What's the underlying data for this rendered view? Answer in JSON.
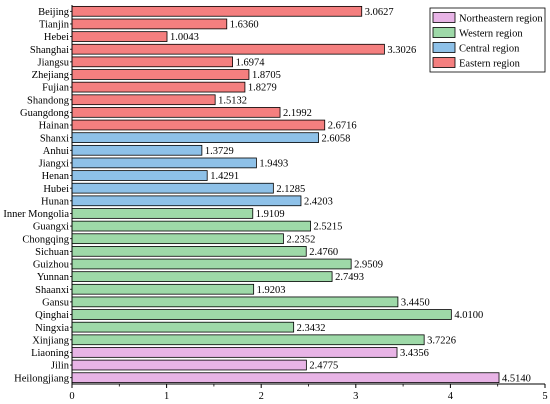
{
  "chart_data": {
    "type": "bar",
    "orientation": "horizontal",
    "categories": [
      "Beijing",
      "Tianjin",
      "Hebei",
      "Shanghai",
      "Jiangsu",
      "Zhejiang",
      "Fujian",
      "Shandong",
      "Guangdong",
      "Hainan",
      "Shanxi",
      "Anhui",
      "Jiangxi",
      "Henan",
      "Hubei",
      "Hunan",
      "Inner Mongolia",
      "Guangxi",
      "Chongqing",
      "Sichuan",
      "Guizhou",
      "Yunnan",
      "Shaanxi",
      "Gansu",
      "Qinghai",
      "Ningxia",
      "Xinjiang",
      "Liaoning",
      "Jilin",
      "Heilongjiang"
    ],
    "values": [
      3.0627,
      1.636,
      1.0043,
      3.3026,
      1.6974,
      1.8705,
      1.8279,
      1.5132,
      2.1992,
      2.6716,
      2.6058,
      1.3729,
      1.9493,
      1.4291,
      2.1285,
      2.4203,
      1.9109,
      2.5215,
      2.2352,
      2.476,
      2.9509,
      2.7493,
      1.9203,
      3.445,
      4.01,
      2.3432,
      3.7226,
      3.4356,
      2.4775,
      4.514
    ],
    "value_labels": [
      "3.0627",
      "1.6360",
      "1.0043",
      "3.3026",
      "1.6974",
      "1.8705",
      "1.8279",
      "1.5132",
      "2.1992",
      "2.6716",
      "2.6058",
      "1.3729",
      "1.9493",
      "1.4291",
      "2.1285",
      "2.4203",
      "1.9109",
      "2.5215",
      "2.2352",
      "2.4760",
      "2.9509",
      "2.7493",
      "1.9203",
      "3.4450",
      "4.0100",
      "2.3432",
      "3.7226",
      "3.4356",
      "2.4775",
      "4.5140"
    ],
    "regions": [
      "Eastern region",
      "Eastern region",
      "Eastern region",
      "Eastern region",
      "Eastern region",
      "Eastern region",
      "Eastern region",
      "Eastern region",
      "Eastern region",
      "Eastern region",
      "Central region",
      "Central region",
      "Central region",
      "Central region",
      "Central region",
      "Central region",
      "Western region",
      "Western region",
      "Western region",
      "Western region",
      "Western region",
      "Western region",
      "Western region",
      "Western region",
      "Western region",
      "Western region",
      "Western region",
      "Northeastern region",
      "Northeastern region",
      "Northeastern region"
    ],
    "legend": [
      {
        "name": "Northeastern region",
        "color": "#e8b4e6"
      },
      {
        "name": "Western region",
        "color": "#9ed9a8"
      },
      {
        "name": "Central region",
        "color": "#8ec1e8"
      },
      {
        "name": "Eastern region",
        "color": "#f47f7f"
      }
    ],
    "legend_position": "top-right",
    "xlim": [
      0,
      5
    ],
    "xticks": [
      "0",
      "1",
      "2",
      "3",
      "4",
      "5"
    ],
    "grid": false,
    "title": "",
    "xlabel": "",
    "ylabel": ""
  }
}
